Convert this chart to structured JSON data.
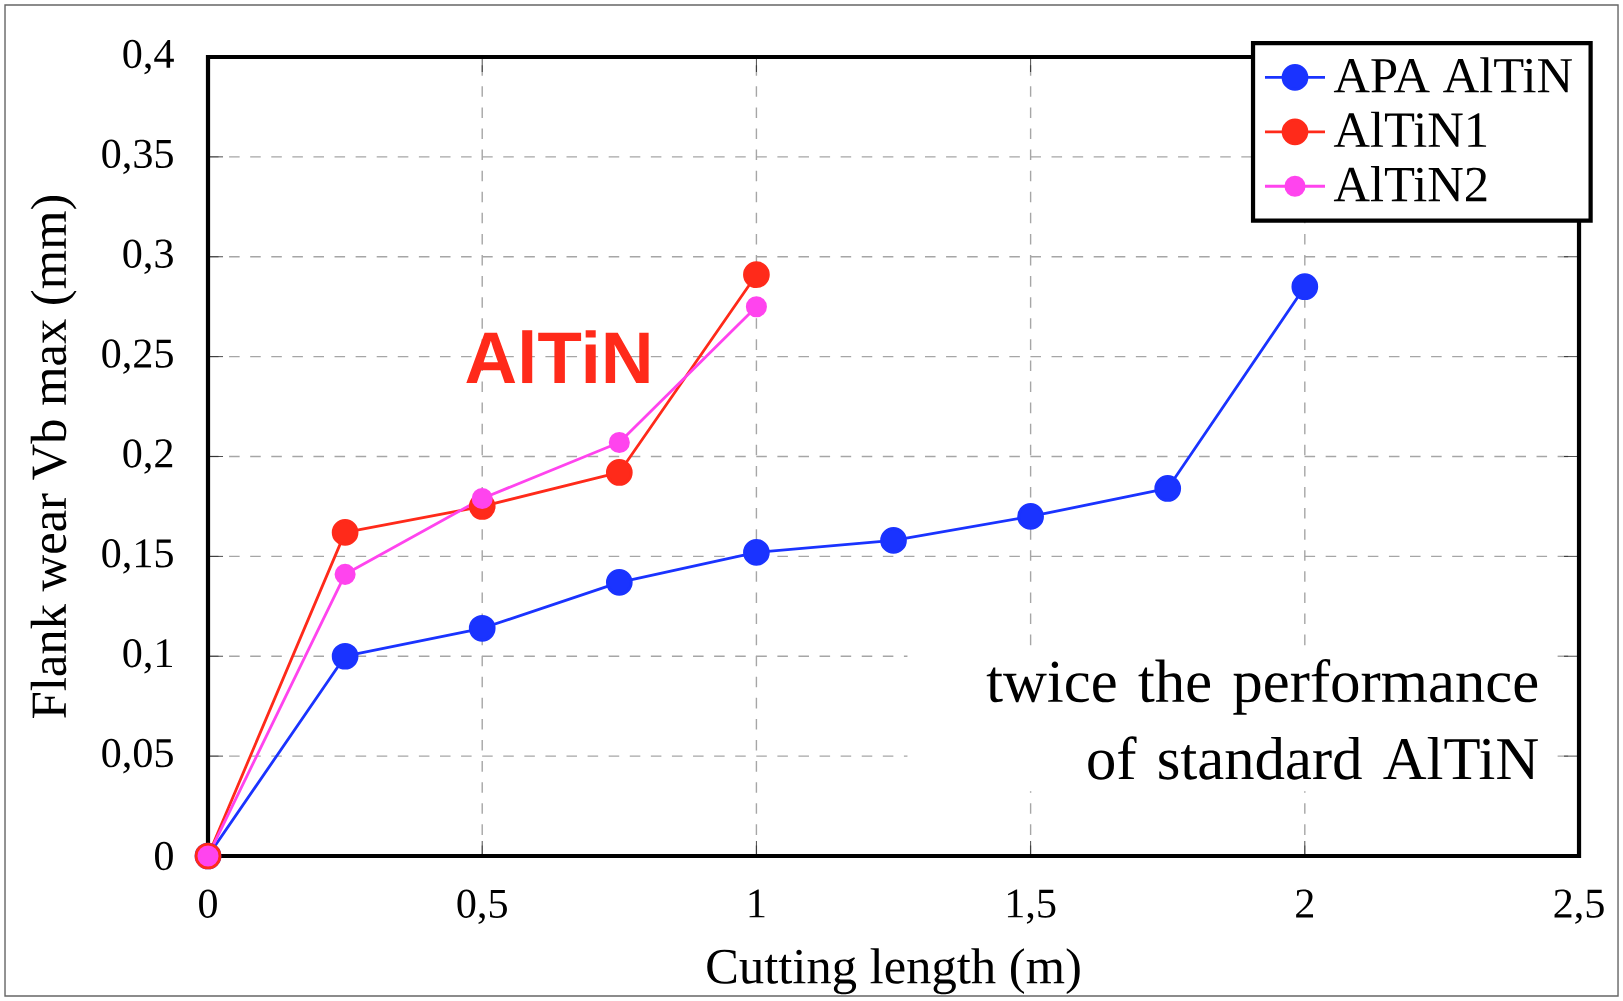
{
  "chart_data": {
    "type": "line",
    "xlabel": "Cutting length (m)",
    "ylabel": "Flank wear Vb max (mm)",
    "xlim": [
      0,
      2.5
    ],
    "ylim": [
      0,
      0.4
    ],
    "xticks": [
      0,
      {
        "value": 0.5,
        "label": "0,5"
      },
      1,
      {
        "value": 1.5,
        "label": "1,5"
      },
      2,
      {
        "value": 2.5,
        "label": "2,5"
      }
    ],
    "yticks": [
      0,
      {
        "value": 0.05,
        "label": "0,05"
      },
      {
        "value": 0.1,
        "label": "0,1"
      },
      {
        "value": 0.15,
        "label": "0,15"
      },
      {
        "value": 0.2,
        "label": "0,2"
      },
      {
        "value": 0.25,
        "label": "0,25"
      },
      {
        "value": 0.3,
        "label": "0,3"
      },
      {
        "value": 0.35,
        "label": "0,35"
      },
      {
        "value": 0.4,
        "label": "0,4"
      }
    ],
    "grid": true,
    "legend": "top right",
    "marker": "circle",
    "line_style": "solid",
    "series": [
      {
        "name": "APA AlTiN",
        "color": "#1a33ff",
        "x": [
          0,
          0.25,
          0.5,
          0.75,
          1,
          1.25,
          1.5,
          1.75,
          2
        ],
        "values": [
          0,
          0.1,
          0.114,
          0.137,
          0.152,
          0.158,
          0.17,
          0.184,
          0.285
        ]
      },
      {
        "name": "AlTiN1",
        "color": "#ff2a1a",
        "x": [
          0,
          0.25,
          0.5,
          0.75,
          1
        ],
        "values": [
          0,
          0.162,
          0.175,
          0.192,
          0.291
        ]
      },
      {
        "name": "AlTiN2",
        "color": "#ff44ee",
        "x": [
          0,
          0.25,
          0.5,
          0.75,
          1
        ],
        "values": [
          0,
          0.141,
          0.179,
          0.207,
          0.275
        ]
      }
    ],
    "annotations": [
      "AlTiN",
      "twice the performance of standard AlTiN"
    ]
  }
}
